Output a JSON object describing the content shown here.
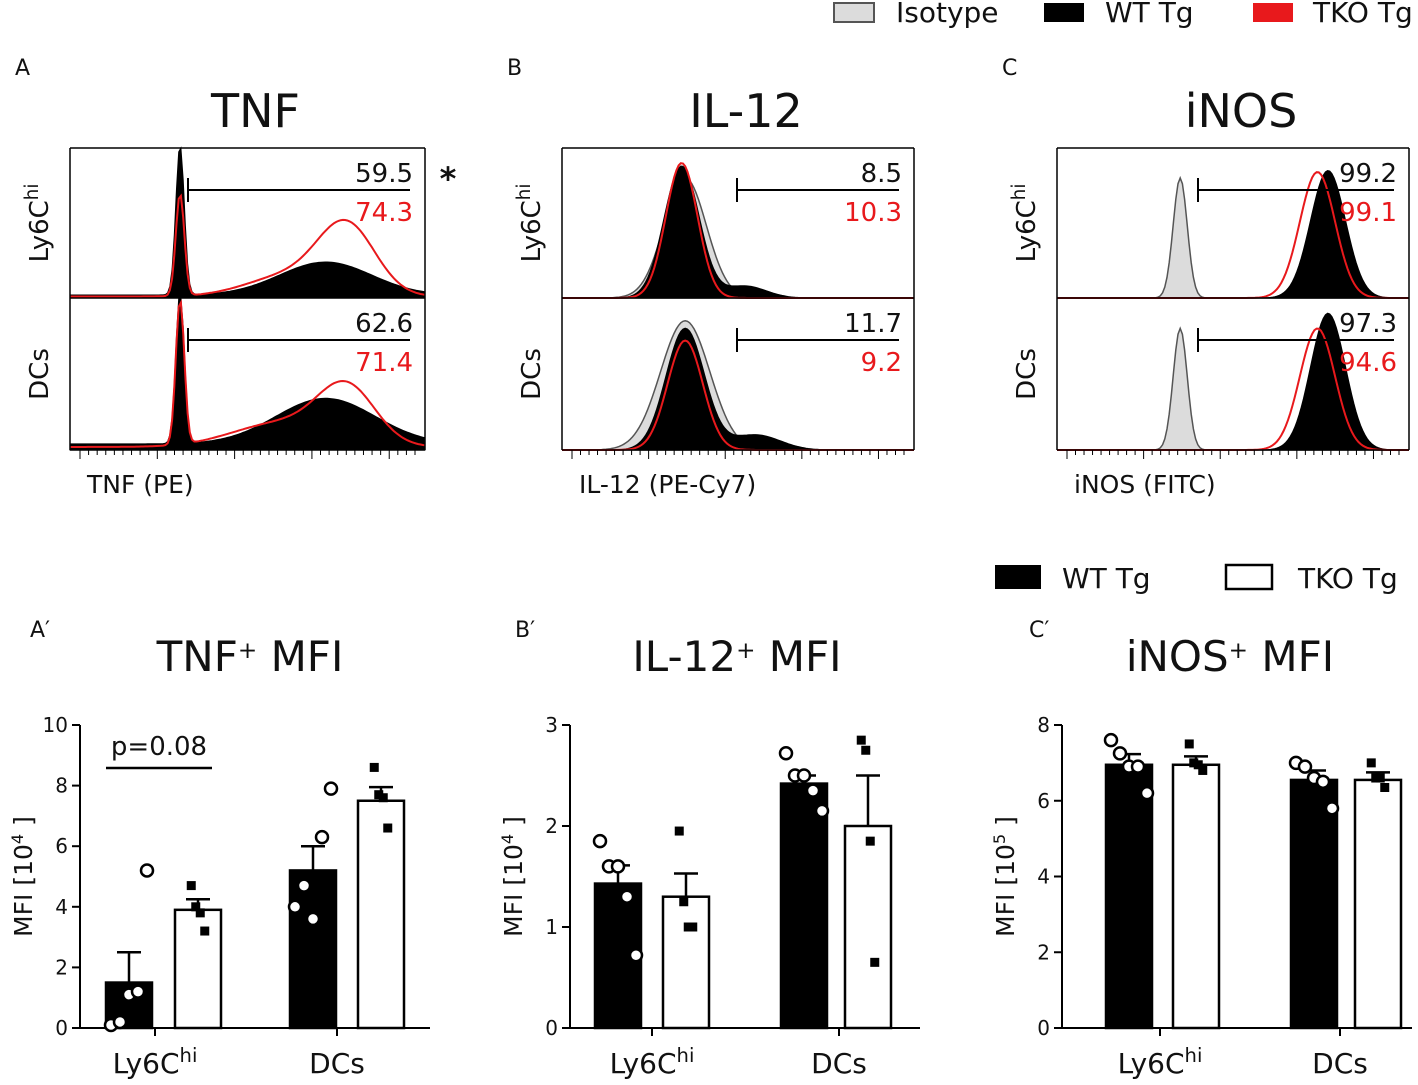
{
  "colors": {
    "wt": "#000000",
    "tko": "#e8191c",
    "isotype_fill": "#dcdcdc",
    "isotype_stroke": "#555555",
    "tko_bar_fill": "#ffffff"
  },
  "legend_top": {
    "isotype": "Isotype",
    "wt": "WT Tg",
    "tko": "TKO Tg"
  },
  "legend_bottom": {
    "wt": "WT Tg",
    "tko": "TKO Tg"
  },
  "panels": [
    {
      "letter": "A",
      "title": "TNF",
      "xlabel": "TNF (PE)",
      "row_labels": [
        {
          "base": "Ly6C",
          "sup": "hi"
        },
        {
          "base": "DCs",
          "sup": ""
        }
      ],
      "gates": [
        {
          "wt": "59.5",
          "tko": "74.3"
        },
        {
          "wt": "62.6",
          "tko": "71.4"
        }
      ],
      "significance": "*"
    },
    {
      "letter": "B",
      "title": "IL-12",
      "xlabel": "IL-12 (PE-Cy7)",
      "row_labels": [
        {
          "base": "Ly6C",
          "sup": "hi"
        },
        {
          "base": "DCs",
          "sup": ""
        }
      ],
      "gates": [
        {
          "wt": "8.5",
          "tko": "10.3"
        },
        {
          "wt": "11.7",
          "tko": "9.2"
        }
      ]
    },
    {
      "letter": "C",
      "title": "iNOS",
      "xlabel": "iNOS (FITC)",
      "row_labels": [
        {
          "base": "Ly6C",
          "sup": "hi"
        },
        {
          "base": "DCs",
          "sup": ""
        }
      ],
      "gates": [
        {
          "wt": "99.2",
          "tko": "99.1"
        },
        {
          "wt": "97.3",
          "tko": "94.6"
        }
      ]
    }
  ],
  "chart_data": [
    {
      "type": "bar",
      "panel": "A′",
      "title_main": "TNF",
      "title_sup": "+",
      "title_tail": " MFI",
      "ylabel": "MFI [10",
      "ylabel_sup": "4",
      "ylabel_tail": "]",
      "ylim": [
        0,
        10
      ],
      "yticks": [
        0,
        2,
        4,
        6,
        8,
        10
      ],
      "categories": [
        {
          "base": "Ly6C",
          "sup": "hi"
        },
        {
          "base": "DCs",
          "sup": ""
        }
      ],
      "series": [
        {
          "name": "WT Tg",
          "means": [
            1.5,
            5.2
          ],
          "sem": [
            1.0,
            0.8
          ],
          "points": [
            [
              0.1,
              0.2,
              1.1,
              1.2,
              5.2
            ],
            [
              4.0,
              4.7,
              3.6,
              6.3,
              7.9
            ]
          ]
        },
        {
          "name": "TKO Tg",
          "means": [
            3.9,
            7.5
          ],
          "sem": [
            0.35,
            0.45
          ],
          "points": [
            [
              4.7,
              4.0,
              3.8,
              3.2
            ],
            [
              8.6,
              7.7,
              7.6,
              6.6
            ]
          ]
        }
      ],
      "annotation": "p=0.08"
    },
    {
      "type": "bar",
      "panel": "B′",
      "title_main": "IL-12",
      "title_sup": "+",
      "title_tail": " MFI",
      "ylabel": "MFI [10",
      "ylabel_sup": "4",
      "ylabel_tail": "]",
      "ylim": [
        0,
        3
      ],
      "yticks": [
        0,
        1,
        2,
        3
      ],
      "categories": [
        {
          "base": "Ly6C",
          "sup": "hi"
        },
        {
          "base": "DCs",
          "sup": ""
        }
      ],
      "series": [
        {
          "name": "WT Tg",
          "means": [
            1.43,
            2.42
          ],
          "sem": [
            0.18,
            0.08
          ],
          "points": [
            [
              1.85,
              1.6,
              1.6,
              1.3,
              0.72
            ],
            [
              2.72,
              2.5,
              2.5,
              2.35,
              2.15
            ]
          ]
        },
        {
          "name": "TKO Tg",
          "means": [
            1.3,
            2.0
          ],
          "sem": [
            0.23,
            0.5
          ],
          "points": [
            [
              1.95,
              1.25,
              1.0,
              1.0
            ],
            [
              2.85,
              2.75,
              1.85,
              0.65
            ]
          ]
        }
      ]
    },
    {
      "type": "bar",
      "panel": "C′",
      "title_main": "iNOS",
      "title_sup": "+",
      "title_tail": " MFI",
      "ylabel": "MFI [10",
      "ylabel_sup": "5",
      "ylabel_tail": "]",
      "ylim": [
        0,
        8
      ],
      "yticks": [
        0,
        2,
        4,
        6,
        8
      ],
      "categories": [
        {
          "base": "Ly6C",
          "sup": "hi"
        },
        {
          "base": "DCs",
          "sup": ""
        }
      ],
      "series": [
        {
          "name": "WT Tg",
          "means": [
            6.95,
            6.55
          ],
          "sem": [
            0.28,
            0.25
          ],
          "points": [
            [
              7.6,
              7.25,
              6.9,
              6.9,
              6.2
            ],
            [
              7.0,
              6.9,
              6.6,
              6.5,
              5.8
            ]
          ]
        },
        {
          "name": "TKO Tg",
          "means": [
            6.95,
            6.55
          ],
          "sem": [
            0.22,
            0.2
          ],
          "points": [
            [
              7.5,
              7.0,
              6.95,
              6.8
            ],
            [
              7.0,
              6.6,
              6.6,
              6.35
            ]
          ]
        }
      ]
    }
  ]
}
